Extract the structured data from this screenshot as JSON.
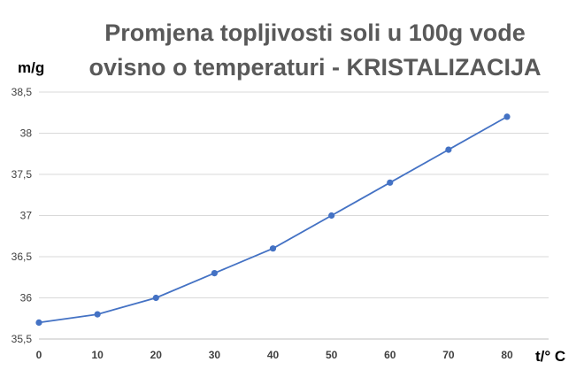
{
  "chart_data": {
    "type": "line",
    "title_line1": "Promjena topljivosti soli u 100g vode",
    "title_line2": "ovisno o temperaturi - KRISTALIZACIJA",
    "ylabel": "m/g",
    "xlabel": "t/° C",
    "x": [
      0,
      10,
      20,
      30,
      40,
      50,
      60,
      70,
      80
    ],
    "y": [
      35.7,
      35.8,
      36.0,
      36.3,
      36.6,
      37.0,
      37.4,
      37.8,
      38.2
    ],
    "xlim": [
      0,
      80
    ],
    "ylim": [
      35.5,
      38.5
    ],
    "x_ticks": [
      "0",
      "10",
      "20",
      "30",
      "40",
      "50",
      "60",
      "70",
      "80"
    ],
    "y_ticks": [
      "35,5",
      "36",
      "36,5",
      "37",
      "37,5",
      "38",
      "38,5"
    ],
    "y_tick_values": [
      35.5,
      36,
      36.5,
      37,
      37.5,
      38,
      38.5
    ],
    "grid": "horizontal",
    "line_color": "#4472c4",
    "grid_color": "#d9d9d9"
  }
}
